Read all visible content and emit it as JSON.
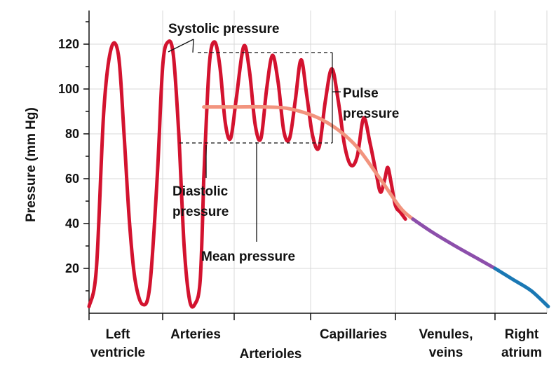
{
  "chart_data": {
    "type": "line",
    "title": "",
    "ylabel": "Pressure (mm Hg)",
    "xlabel": "",
    "ylim": [
      0,
      135
    ],
    "yticks": [
      20,
      40,
      60,
      80,
      100,
      120
    ],
    "grid": true,
    "x_regions": [
      {
        "lines": [
          "Left",
          "ventricle"
        ]
      },
      {
        "lines": [
          "Arteries"
        ]
      },
      {
        "lines": [
          "Arterioles"
        ]
      },
      {
        "lines": [
          "Capillaries"
        ]
      },
      {
        "lines": [
          "Venules,",
          "veins"
        ]
      },
      {
        "lines": [
          "Right",
          "atrium"
        ]
      }
    ],
    "series": [
      {
        "role": "ventricle-pressure",
        "color": "#d3132f",
        "points": [
          [
            0.0,
            3
          ],
          [
            0.2,
            20
          ],
          [
            0.4,
            90
          ],
          [
            0.6,
            118
          ],
          [
            0.8,
            115
          ],
          [
            0.95,
            80
          ],
          [
            1.1,
            40
          ],
          [
            1.25,
            15
          ],
          [
            1.45,
            4
          ],
          [
            1.65,
            12
          ],
          [
            1.85,
            60
          ],
          [
            2.0,
            110
          ],
          [
            2.15,
            121
          ],
          [
            2.3,
            115
          ],
          [
            2.45,
            80
          ],
          [
            2.6,
            30
          ],
          [
            2.75,
            6
          ],
          [
            2.9,
            4
          ],
          [
            3.05,
            15
          ],
          [
            3.15,
            60
          ]
        ]
      },
      {
        "role": "arterial-pressure",
        "color": "#d3132f",
        "points": [
          [
            3.15,
            60
          ],
          [
            3.3,
            110
          ],
          [
            3.45,
            121
          ],
          [
            3.6,
            110
          ],
          [
            3.75,
            85
          ],
          [
            3.9,
            78
          ],
          [
            4.05,
            95
          ],
          [
            4.25,
            119
          ],
          [
            4.4,
            108
          ],
          [
            4.55,
            84
          ],
          [
            4.7,
            78
          ],
          [
            4.85,
            100
          ],
          [
            5.0,
            115
          ],
          [
            5.15,
            103
          ],
          [
            5.3,
            81
          ],
          [
            5.45,
            78
          ],
          [
            5.6,
            95
          ],
          [
            5.75,
            113
          ],
          [
            5.9,
            97
          ],
          [
            6.05,
            79
          ],
          [
            6.2,
            74
          ],
          [
            6.35,
            95
          ],
          [
            6.5,
            109
          ],
          [
            6.65,
            95
          ],
          [
            6.8,
            75
          ],
          [
            6.95,
            66
          ],
          [
            7.1,
            70
          ],
          [
            7.25,
            87
          ],
          [
            7.4,
            76
          ],
          [
            7.55,
            62
          ],
          [
            7.65,
            54
          ],
          [
            7.75,
            60
          ],
          [
            7.82,
            65
          ],
          [
            7.9,
            58
          ],
          [
            8.0,
            48
          ],
          [
            8.1,
            45
          ],
          [
            8.2,
            42
          ]
        ]
      },
      {
        "role": "mean-pressure",
        "color": "#f2947e",
        "points": [
          [
            3.15,
            92
          ],
          [
            4.0,
            92
          ],
          [
            4.8,
            92
          ],
          [
            5.5,
            91
          ],
          [
            6.3,
            86
          ],
          [
            7.0,
            76
          ],
          [
            7.6,
            61
          ],
          [
            8.1,
            47
          ],
          [
            8.35,
            42
          ]
        ]
      },
      {
        "role": "capillary-pressure",
        "color": "#8c4fab",
        "points": [
          [
            8.35,
            42
          ],
          [
            8.75,
            36
          ],
          [
            9.2,
            30
          ],
          [
            9.6,
            25
          ],
          [
            10.0,
            20
          ]
        ]
      },
      {
        "role": "venous-pressure",
        "color": "#1a78b4",
        "points": [
          [
            10.0,
            20
          ],
          [
            10.7,
            15
          ],
          [
            11.4,
            10
          ],
          [
            12.05,
            3
          ]
        ]
      }
    ],
    "annotations": [
      {
        "name": "systolic-pressure",
        "lines": [
          "Systolic pressure"
        ]
      },
      {
        "name": "pulse-pressure",
        "lines": [
          "Pulse",
          "pressure"
        ]
      },
      {
        "name": "diastolic-pressure",
        "lines": [
          "Diastolic",
          "pressure"
        ]
      },
      {
        "name": "mean-pressure",
        "lines": [
          "Mean pressure"
        ]
      }
    ]
  }
}
